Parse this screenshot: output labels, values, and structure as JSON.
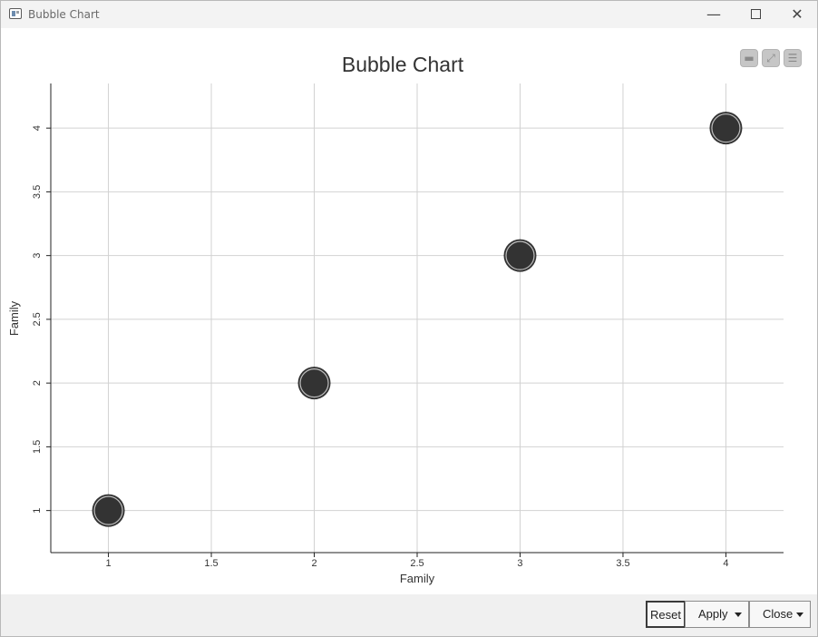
{
  "window": {
    "title": "Bubble Chart",
    "minimize_glyph": "—",
    "close_glyph": "✕"
  },
  "toolbar": {
    "collapse_icon": "minus-icon",
    "expand_icon": "expand-icon",
    "menu_icon": "menu-icon"
  },
  "footer": {
    "reset_label": "Reset",
    "apply_label": "Apply",
    "close_label": "Close"
  },
  "chart_data": {
    "type": "scatter",
    "title": "Bubble Chart",
    "xlabel": "Family",
    "ylabel": "Family",
    "xlim": [
      0.72,
      4.28
    ],
    "ylim": [
      0.67,
      4.35
    ],
    "x_ticks": [
      1,
      1.5,
      2,
      2.5,
      3,
      3.5,
      4
    ],
    "y_ticks": [
      1,
      1.5,
      2,
      2.5,
      3,
      3.5,
      4
    ],
    "grid": true,
    "legend": "none",
    "bubble_color": "#333333",
    "series": [
      {
        "points": [
          {
            "x": 1,
            "y": 1
          },
          {
            "x": 2,
            "y": 2
          },
          {
            "x": 3,
            "y": 3
          },
          {
            "x": 4,
            "y": 4
          }
        ]
      }
    ]
  }
}
